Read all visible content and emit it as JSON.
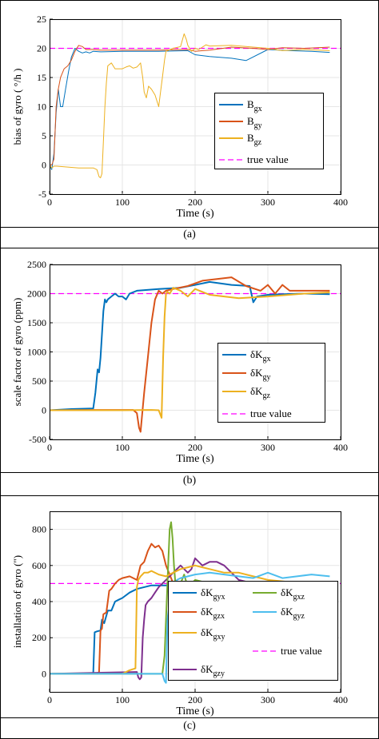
{
  "colors": {
    "gx": "#0072BD",
    "gy": "#D95319",
    "gz": "#EDB120",
    "gzy": "#7E2F8E",
    "gxz": "#77AC30",
    "gzx_c": "#D95319",
    "gyz": "#4DBEEE",
    "truth": "#FF00FF",
    "frame": "#000000",
    "grid": "#e6e6e6"
  },
  "chart_data": [
    {
      "type": "line",
      "caption": "(a)",
      "xlabel": "Time (s)",
      "ylabel": "bias of gyro ( °/h )",
      "xlim": [
        0,
        400
      ],
      "ylim": [
        -5,
        25
      ],
      "xticks": [
        "0",
        "100",
        "200",
        "300",
        "400"
      ],
      "yticks": [
        "-5",
        "0",
        "5",
        "10",
        "15",
        "20",
        "25"
      ],
      "grid": true,
      "legend_position": "right-middle",
      "truth": {
        "name": "true value",
        "value": 20
      },
      "series": [
        {
          "name": "B",
          "sub": "gx",
          "color_key": "gx",
          "x": [
            0,
            3,
            6,
            9,
            12,
            15,
            18,
            22,
            26,
            30,
            35,
            40,
            45,
            50,
            55,
            60,
            70,
            100,
            150,
            190,
            200,
            220,
            250,
            270,
            300,
            330,
            360,
            385
          ],
          "y": [
            0,
            -0.8,
            2,
            9,
            13,
            10,
            10,
            13,
            16,
            18.5,
            20,
            19.5,
            19.2,
            19.4,
            19.2,
            19.5,
            19.4,
            19.5,
            19.5,
            19.6,
            18.9,
            18.6,
            18.3,
            17.9,
            19.8,
            19.6,
            19.5,
            19.3
          ]
        },
        {
          "name": "B",
          "sub": "gy",
          "color_key": "gy",
          "x": [
            0,
            3,
            6,
            9,
            12,
            15,
            20,
            25,
            30,
            35,
            40,
            45,
            50,
            60,
            70,
            100,
            150,
            190,
            200,
            220,
            250,
            280,
            300,
            320,
            350,
            385
          ],
          "y": [
            0,
            0,
            1,
            10,
            13,
            15,
            16.5,
            17,
            18,
            19.5,
            20.5,
            20.3,
            19.8,
            19.8,
            19.7,
            19.7,
            19.7,
            19.8,
            19.5,
            19.7,
            20.2,
            20,
            19.8,
            20.1,
            20,
            20.2
          ]
        },
        {
          "name": "B",
          "sub": "gz",
          "color_key": "gz",
          "x": [
            0,
            3,
            6,
            10,
            20,
            40,
            60,
            65,
            68,
            70,
            72,
            74,
            76,
            78,
            80,
            85,
            90,
            95,
            100,
            105,
            110,
            115,
            120,
            125,
            128,
            130,
            133,
            136,
            140,
            145,
            150,
            152,
            155,
            158,
            160,
            170,
            180,
            185,
            188,
            190,
            195,
            200,
            205,
            210,
            215,
            220,
            250,
            300,
            320,
            350,
            385
          ],
          "y": [
            0,
            -0.5,
            -0.2,
            -0.2,
            -0.3,
            -0.5,
            -0.5,
            -0.8,
            -2,
            -2.2,
            -1.5,
            4,
            10,
            14,
            17,
            17.5,
            16.5,
            16.5,
            16.5,
            16.8,
            17,
            16.6,
            16.8,
            17.5,
            15,
            12.5,
            11.5,
            13.5,
            13,
            12,
            10,
            12,
            15,
            18,
            19.5,
            20,
            20.3,
            22.5,
            21.5,
            20.5,
            19.5,
            20,
            19.8,
            20.2,
            20.6,
            20.4,
            20.5,
            20,
            19.6,
            19.8,
            19.6
          ]
        }
      ]
    },
    {
      "type": "line",
      "caption": "(b)",
      "xlabel": "Time (s)",
      "ylabel": "scale factor of gyro (ppm)",
      "xlim": [
        0,
        400
      ],
      "ylim": [
        -500,
        2500
      ],
      "xticks": [
        "0",
        "100",
        "200",
        "300",
        "400"
      ],
      "yticks": [
        "-500",
        "0",
        "500",
        "1000",
        "1500",
        "2000",
        "2500"
      ],
      "grid": true,
      "legend_position": "bottom-right",
      "truth": {
        "name": "true value",
        "value": 2000
      },
      "series": [
        {
          "name": "δK",
          "sub": "gx",
          "color_key": "gx",
          "x": [
            0,
            30,
            60,
            63,
            66,
            68,
            70,
            72,
            74,
            76,
            78,
            80,
            85,
            90,
            95,
            100,
            105,
            110,
            120,
            150,
            180,
            200,
            220,
            250,
            275,
            280,
            285,
            300,
            320,
            350,
            385
          ],
          "y": [
            0,
            20,
            30,
            300,
            700,
            650,
            900,
            1300,
            1700,
            1900,
            1850,
            1900,
            1950,
            2000,
            1950,
            1950,
            1900,
            2000,
            2050,
            2080,
            2100,
            2150,
            2200,
            2150,
            2130,
            1850,
            1950,
            1980,
            1990,
            2000,
            1990
          ]
        },
        {
          "name": "δK",
          "sub": "gy",
          "color_key": "gy",
          "x": [
            0,
            60,
            100,
            115,
            120,
            123,
            125,
            127,
            130,
            135,
            140,
            145,
            150,
            155,
            160,
            170,
            190,
            210,
            230,
            250,
            270,
            290,
            300,
            310,
            320,
            330,
            350,
            385
          ],
          "y": [
            0,
            5,
            5,
            5,
            -50,
            -300,
            -370,
            -100,
            300,
            900,
            1500,
            1900,
            2050,
            2000,
            2050,
            2080,
            2130,
            2220,
            2250,
            2280,
            2130,
            2050,
            2150,
            2000,
            2150,
            2050,
            2050,
            2050
          ]
        },
        {
          "name": "δK",
          "sub": "gz",
          "color_key": "gz",
          "x": [
            0,
            100,
            140,
            150,
            154,
            156,
            158,
            160,
            162,
            165,
            170,
            180,
            190,
            200,
            220,
            240,
            260,
            300,
            350,
            385
          ],
          "y": [
            0,
            0,
            5,
            0,
            -130,
            900,
            1600,
            2000,
            2030,
            2000,
            2100,
            2050,
            1950,
            2080,
            1980,
            1950,
            1920,
            1950,
            2000,
            2020
          ]
        }
      ]
    },
    {
      "type": "line",
      "caption": "(c)",
      "xlabel": "Time (s)",
      "ylabel": "installation of gyro (\")",
      "xlim": [
        0,
        400
      ],
      "ylim": [
        -100,
        900
      ],
      "xticks": [
        "0",
        "100",
        "200",
        "300",
        "400"
      ],
      "yticks": [
        "0",
        "200",
        "400",
        "600",
        "800"
      ],
      "grid": true,
      "legend_position": "bottom-right",
      "truth": {
        "name": "true value",
        "value": 500
      },
      "series": [
        {
          "name": "δK",
          "sub": "gyx",
          "color_key": "gx",
          "x": [
            0,
            50,
            60,
            62,
            65,
            70,
            72,
            75,
            80,
            85,
            90,
            95,
            100,
            110,
            120,
            140,
            160,
            180,
            200,
            220,
            250,
            300,
            350,
            385
          ],
          "y": [
            0,
            0,
            0,
            230,
            235,
            240,
            300,
            280,
            350,
            350,
            400,
            410,
            420,
            450,
            470,
            490,
            490,
            500,
            490,
            480,
            470,
            490,
            490,
            490
          ]
        },
        {
          "name": "δK",
          "sub": "gzx",
          "color_key": "gzx_c",
          "x": [
            0,
            60,
            66,
            68,
            70,
            72,
            74,
            78,
            80,
            82,
            85,
            90,
            95,
            100,
            110,
            120,
            125,
            130,
            135,
            140,
            145,
            150,
            155,
            160,
            170,
            180,
            185,
            190,
            200,
            220,
            250,
            300,
            350,
            385
          ],
          "y": [
            0,
            0,
            0,
            10,
            240,
            250,
            330,
            340,
            400,
            460,
            470,
            500,
            520,
            530,
            540,
            520,
            600,
            620,
            680,
            720,
            700,
            710,
            680,
            600,
            500,
            470,
            460,
            450,
            460,
            470,
            470,
            460,
            450,
            450
          ]
        },
        {
          "name": "δK",
          "sub": "gzy",
          "color_key": "gzy",
          "x": [
            0,
            120,
            122,
            124,
            126,
            128,
            130,
            132,
            135,
            140,
            145,
            150,
            155,
            160,
            170,
            180,
            185,
            190,
            195,
            200,
            210,
            220,
            230,
            240,
            250,
            260,
            280,
            300,
            350,
            385
          ],
          "y": [
            0,
            10,
            -20,
            -30,
            -20,
            200,
            300,
            380,
            400,
            420,
            450,
            480,
            500,
            520,
            560,
            600,
            580,
            560,
            580,
            640,
            600,
            620,
            620,
            600,
            560,
            520,
            500,
            510,
            500,
            500
          ]
        },
        {
          "name": "δK",
          "sub": "gxz",
          "color_key": "gxz",
          "x": [
            0,
            150,
            155,
            158,
            160,
            163,
            165,
            167,
            169,
            171,
            173,
            175,
            178,
            180,
            185,
            190,
            200,
            220,
            250,
            300,
            350,
            385
          ],
          "y": [
            0,
            0,
            0,
            100,
            300,
            600,
            800,
            840,
            750,
            600,
            500,
            450,
            480,
            500,
            550,
            480,
            520,
            500,
            490,
            480,
            470,
            470
          ]
        },
        {
          "name": "δK",
          "sub": "gxy",
          "color_key": "gz",
          "x": [
            0,
            100,
            110,
            118,
            120,
            122,
            125,
            130,
            135,
            140,
            150,
            160,
            170,
            180,
            190,
            200,
            210,
            220,
            240,
            260,
            280,
            300,
            350,
            385
          ],
          "y": [
            0,
            0,
            20,
            30,
            480,
            520,
            540,
            560,
            560,
            570,
            550,
            540,
            560,
            580,
            590,
            600,
            590,
            580,
            560,
            560,
            540,
            520,
            500,
            490
          ]
        },
        {
          "name": "δK",
          "sub": "gyz",
          "color_key": "gyz",
          "x": [
            0,
            150,
            155,
            158,
            160,
            162,
            165,
            168,
            170,
            175,
            180,
            190,
            200,
            220,
            240,
            260,
            280,
            300,
            320,
            340,
            360,
            385
          ],
          "y": [
            0,
            0,
            0,
            -40,
            -50,
            300,
            400,
            450,
            470,
            520,
            530,
            540,
            550,
            560,
            550,
            540,
            530,
            560,
            530,
            540,
            550,
            540
          ]
        }
      ],
      "legend_order": [
        "gyx",
        "gxz",
        "gzx",
        "gyz",
        "gxy",
        "truth",
        "gzy"
      ]
    }
  ]
}
